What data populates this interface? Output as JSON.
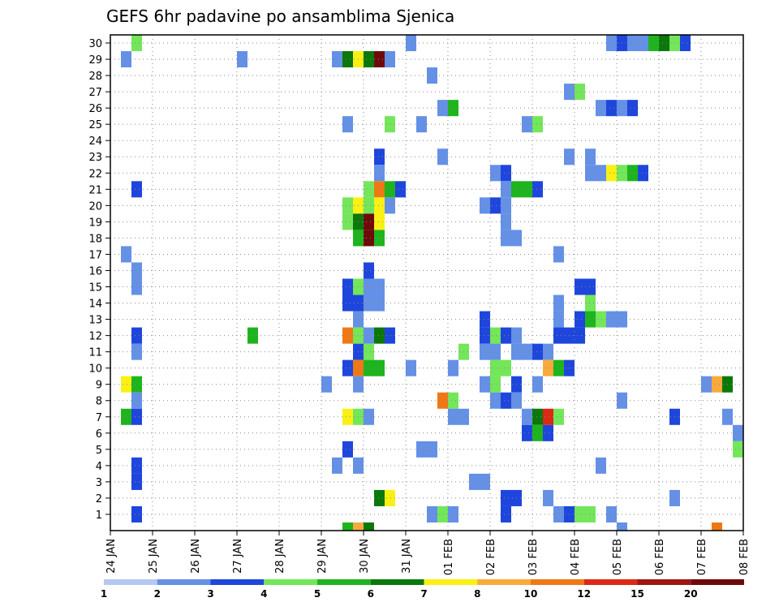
{
  "chart_data": {
    "type": "heatmap",
    "title": "GEFS 6hr padavine po ansamblima Sjenica",
    "xlabel": "",
    "ylabel": "",
    "x_ticks": [
      "24 JAN",
      "25 JAN",
      "26 JAN",
      "27 JAN",
      "28 JAN",
      "29 JAN",
      "30 JAN",
      "31 JAN",
      "01 FEB",
      "02 FEB",
      "03 FEB",
      "04 FEB",
      "05 FEB",
      "06 FEB",
      "07 FEB",
      "08 FEB"
    ],
    "y_ticks": [
      "1",
      "2",
      "3",
      "4",
      "5",
      "6",
      "7",
      "8",
      "9",
      "10",
      "11",
      "12",
      "13",
      "14",
      "15",
      "16",
      "17",
      "18",
      "19",
      "20",
      "21",
      "22",
      "23",
      "24",
      "25",
      "26",
      "27",
      "28",
      "29",
      "30"
    ],
    "x_range_steps": [
      0,
      60
    ],
    "x_step_hours": 6,
    "y_range": [
      0,
      30
    ],
    "grid": true,
    "colorbar": {
      "labels": [
        "1",
        "2",
        "3",
        "4",
        "5",
        "6",
        "7",
        "8",
        "10",
        "12",
        "15",
        "20"
      ],
      "colors": [
        "#b4c8f0",
        "#6490e6",
        "#1e46dc",
        "#73e65a",
        "#1eb41e",
        "#0a780a",
        "#faf014",
        "#faaa3c",
        "#f07814",
        "#dc2814",
        "#a01414",
        "#6e0a0a"
      ]
    },
    "cells": [
      [
        30,
        2,
        3
      ],
      [
        30,
        28,
        1
      ],
      [
        30,
        47,
        1
      ],
      [
        30,
        48,
        2
      ],
      [
        30,
        49,
        1
      ],
      [
        30,
        50,
        1
      ],
      [
        30,
        51,
        4
      ],
      [
        30,
        52,
        5
      ],
      [
        30,
        53,
        3
      ],
      [
        30,
        54,
        2
      ],
      [
        29,
        1,
        1
      ],
      [
        29,
        12,
        1
      ],
      [
        29,
        21,
        1
      ],
      [
        29,
        22,
        5
      ],
      [
        29,
        23,
        6
      ],
      [
        29,
        24,
        5
      ],
      [
        29,
        25,
        11
      ],
      [
        29,
        26,
        1
      ],
      [
        28,
        30,
        1
      ],
      [
        27,
        43,
        1
      ],
      [
        27,
        44,
        3
      ],
      [
        26,
        31,
        1
      ],
      [
        26,
        32,
        4
      ],
      [
        26,
        46,
        1
      ],
      [
        26,
        47,
        2
      ],
      [
        26,
        48,
        1
      ],
      [
        26,
        49,
        2
      ],
      [
        25,
        22,
        1
      ],
      [
        25,
        29,
        1
      ],
      [
        25,
        39,
        1
      ],
      [
        25,
        40,
        3
      ],
      [
        23,
        25,
        2
      ],
      [
        25,
        26,
        3
      ],
      [
        23,
        31,
        1
      ],
      [
        23,
        43,
        1
      ],
      [
        23,
        45,
        1
      ],
      [
        22,
        25,
        1
      ],
      [
        22,
        36,
        1
      ],
      [
        22,
        37,
        2
      ],
      [
        22,
        45,
        1
      ],
      [
        22,
        46,
        1
      ],
      [
        22,
        47,
        6
      ],
      [
        22,
        48,
        3
      ],
      [
        22,
        49,
        4
      ],
      [
        22,
        50,
        2
      ],
      [
        21,
        2,
        2
      ],
      [
        21,
        24,
        3
      ],
      [
        21,
        25,
        8
      ],
      [
        21,
        26,
        4
      ],
      [
        21,
        27,
        2
      ],
      [
        21,
        37,
        1
      ],
      [
        21,
        38,
        4
      ],
      [
        21,
        39,
        4
      ],
      [
        21,
        40,
        2
      ],
      [
        20,
        22,
        3
      ],
      [
        20,
        23,
        6
      ],
      [
        20,
        24,
        3
      ],
      [
        20,
        25,
        6
      ],
      [
        20,
        26,
        1
      ],
      [
        20,
        35,
        1
      ],
      [
        20,
        36,
        2
      ],
      [
        20,
        37,
        1
      ],
      [
        19,
        22,
        3
      ],
      [
        19,
        23,
        5
      ],
      [
        19,
        24,
        11
      ],
      [
        19,
        25,
        6
      ],
      [
        19,
        37,
        1
      ],
      [
        18,
        23,
        4
      ],
      [
        18,
        24,
        11
      ],
      [
        18,
        25,
        4
      ],
      [
        18,
        37,
        1
      ],
      [
        18,
        38,
        1
      ],
      [
        17,
        1,
        1
      ],
      [
        17,
        42,
        1
      ],
      [
        16,
        2,
        1
      ],
      [
        16,
        24,
        2
      ],
      [
        15,
        2,
        1
      ],
      [
        15,
        22,
        2
      ],
      [
        15,
        23,
        3
      ],
      [
        15,
        24,
        1
      ],
      [
        15,
        25,
        1
      ],
      [
        15,
        44,
        2
      ],
      [
        15,
        45,
        2
      ],
      [
        14,
        22,
        2
      ],
      [
        14,
        23,
        2
      ],
      [
        14,
        24,
        1
      ],
      [
        14,
        25,
        1
      ],
      [
        14,
        45,
        3
      ],
      [
        14,
        42,
        1
      ],
      [
        13,
        23,
        1
      ],
      [
        13,
        35,
        2
      ],
      [
        13,
        42,
        1
      ],
      [
        13,
        44,
        2
      ],
      [
        13,
        45,
        4
      ],
      [
        13,
        46,
        3
      ],
      [
        13,
        47,
        1
      ],
      [
        13,
        48,
        1
      ],
      [
        12,
        2,
        2
      ],
      [
        12,
        13,
        4
      ],
      [
        12,
        22,
        8
      ],
      [
        12,
        23,
        3
      ],
      [
        12,
        24,
        1
      ],
      [
        12,
        25,
        5
      ],
      [
        12,
        26,
        2
      ],
      [
        12,
        35,
        2
      ],
      [
        12,
        36,
        3
      ],
      [
        12,
        37,
        2
      ],
      [
        12,
        38,
        1
      ],
      [
        12,
        42,
        2
      ],
      [
        12,
        43,
        2
      ],
      [
        12,
        44,
        2
      ],
      [
        11,
        2,
        1
      ],
      [
        11,
        23,
        2
      ],
      [
        11,
        24,
        3
      ],
      [
        11,
        33,
        3
      ],
      [
        11,
        35,
        1
      ],
      [
        11,
        36,
        1
      ],
      [
        11,
        38,
        1
      ],
      [
        11,
        39,
        1
      ],
      [
        11,
        40,
        2
      ],
      [
        11,
        41,
        1
      ],
      [
        10,
        22,
        2
      ],
      [
        10,
        23,
        8
      ],
      [
        10,
        24,
        4
      ],
      [
        10,
        25,
        4
      ],
      [
        10,
        28,
        1
      ],
      [
        10,
        32,
        1
      ],
      [
        10,
        36,
        3
      ],
      [
        10,
        37,
        3
      ],
      [
        10,
        41,
        7
      ],
      [
        10,
        42,
        4
      ],
      [
        10,
        43,
        2
      ],
      [
        9,
        1,
        6
      ],
      [
        9,
        2,
        4
      ],
      [
        9,
        20,
        1
      ],
      [
        9,
        38,
        2
      ],
      [
        9,
        56,
        1
      ],
      [
        9,
        57,
        7
      ],
      [
        9,
        58,
        5
      ],
      [
        9,
        23,
        1
      ],
      [
        9,
        35,
        1
      ],
      [
        9,
        36,
        3
      ],
      [
        9,
        40,
        1
      ],
      [
        8,
        2,
        1
      ],
      [
        8,
        31,
        8
      ],
      [
        8,
        32,
        3
      ],
      [
        8,
        36,
        1
      ],
      [
        8,
        37,
        2
      ],
      [
        8,
        38,
        1
      ],
      [
        8,
        48,
        1
      ],
      [
        7,
        1,
        4
      ],
      [
        7,
        2,
        2
      ],
      [
        7,
        22,
        6
      ],
      [
        7,
        23,
        3
      ],
      [
        7,
        24,
        1
      ],
      [
        7,
        32,
        1
      ],
      [
        7,
        33,
        1
      ],
      [
        7,
        39,
        1
      ],
      [
        7,
        40,
        5
      ],
      [
        7,
        41,
        9
      ],
      [
        7,
        42,
        3
      ],
      [
        7,
        53,
        2
      ],
      [
        7,
        58,
        1
      ],
      [
        6,
        39,
        2
      ],
      [
        6,
        40,
        4
      ],
      [
        6,
        41,
        2
      ],
      [
        6,
        59,
        1
      ],
      [
        5,
        22,
        2
      ],
      [
        5,
        29,
        1
      ],
      [
        5,
        30,
        1
      ],
      [
        5,
        59,
        3
      ],
      [
        4,
        2,
        2
      ],
      [
        4,
        21,
        1
      ],
      [
        4,
        23,
        1
      ],
      [
        4,
        46,
        1
      ],
      [
        3,
        2,
        2
      ],
      [
        3,
        34,
        1
      ],
      [
        3,
        35,
        1
      ],
      [
        2,
        25,
        5
      ],
      [
        2,
        26,
        6
      ],
      [
        2,
        37,
        2
      ],
      [
        2,
        38,
        2
      ],
      [
        2,
        41,
        1
      ],
      [
        2,
        53,
        1
      ],
      [
        1,
        2,
        2
      ],
      [
        1,
        30,
        1
      ],
      [
        1,
        31,
        3
      ],
      [
        1,
        32,
        1
      ],
      [
        1,
        37,
        2
      ],
      [
        1,
        42,
        1
      ],
      [
        1,
        43,
        2
      ],
      [
        1,
        44,
        3
      ],
      [
        1,
        45,
        3
      ],
      [
        1,
        47,
        1
      ],
      [
        0,
        22,
        4
      ],
      [
        0,
        23,
        7
      ],
      [
        0,
        24,
        5
      ],
      [
        0,
        48,
        1
      ],
      [
        0,
        57,
        8
      ]
    ]
  }
}
